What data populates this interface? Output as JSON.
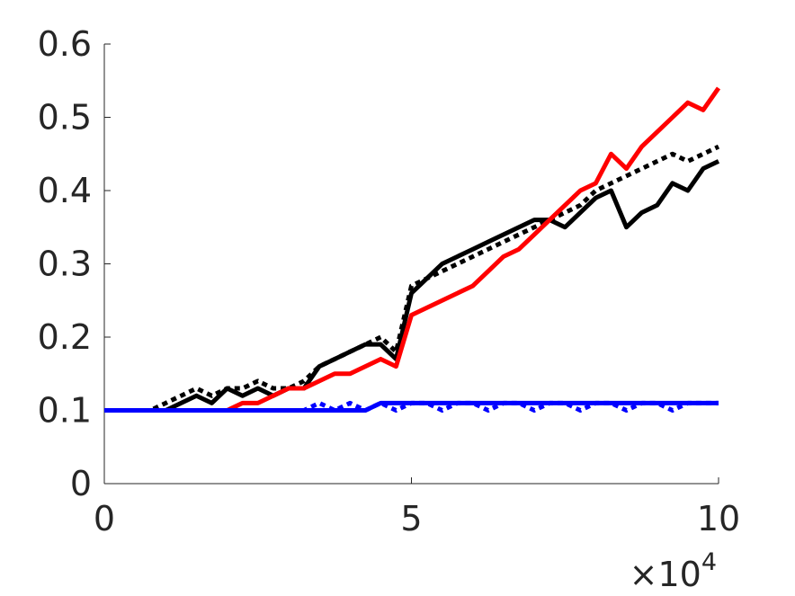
{
  "chart_data": {
    "type": "line",
    "x": [
      0,
      0.25,
      0.5,
      0.75,
      1,
      1.25,
      1.5,
      1.75,
      2,
      2.25,
      2.5,
      2.75,
      3,
      3.25,
      3.5,
      3.75,
      4,
      4.25,
      4.5,
      4.75,
      5,
      5.25,
      5.5,
      5.75,
      6,
      6.25,
      6.5,
      6.75,
      7,
      7.25,
      7.5,
      7.75,
      8,
      8.25,
      8.5,
      8.75,
      9,
      9.25,
      9.5,
      9.75,
      10
    ],
    "series": [
      {
        "color": "#000000",
        "dash": "dotted",
        "values": [
          0.1,
          0.1,
          0.1,
          0.1,
          0.11,
          0.12,
          0.13,
          0.12,
          0.13,
          0.13,
          0.14,
          0.13,
          0.13,
          0.14,
          0.16,
          0.17,
          0.18,
          0.19,
          0.2,
          0.18,
          0.27,
          0.28,
          0.29,
          0.3,
          0.31,
          0.32,
          0.33,
          0.34,
          0.35,
          0.36,
          0.37,
          0.38,
          0.4,
          0.41,
          0.42,
          0.43,
          0.44,
          0.45,
          0.44,
          0.45,
          0.46
        ]
      },
      {
        "color": "#000000",
        "dash": "solid",
        "values": [
          0.1,
          0.1,
          0.1,
          0.1,
          0.1,
          0.11,
          0.12,
          0.11,
          0.13,
          0.12,
          0.13,
          0.12,
          0.13,
          0.13,
          0.16,
          0.17,
          0.18,
          0.19,
          0.19,
          0.17,
          0.26,
          0.28,
          0.3,
          0.31,
          0.32,
          0.33,
          0.34,
          0.35,
          0.36,
          0.36,
          0.35,
          0.37,
          0.39,
          0.4,
          0.35,
          0.37,
          0.38,
          0.41,
          0.4,
          0.43,
          0.44
        ]
      },
      {
        "color": "#ff0000",
        "dash": "solid",
        "values": [
          0.1,
          0.1,
          0.1,
          0.1,
          0.1,
          0.1,
          0.1,
          0.1,
          0.1,
          0.11,
          0.11,
          0.12,
          0.13,
          0.13,
          0.14,
          0.15,
          0.15,
          0.16,
          0.17,
          0.16,
          0.23,
          0.24,
          0.25,
          0.26,
          0.27,
          0.29,
          0.31,
          0.32,
          0.34,
          0.36,
          0.38,
          0.4,
          0.41,
          0.45,
          0.43,
          0.46,
          0.48,
          0.5,
          0.52,
          0.51,
          0.54
        ]
      },
      {
        "color": "#0000ff",
        "dash": "dotted",
        "values": [
          0.1,
          0.1,
          0.1,
          0.1,
          0.1,
          0.1,
          0.1,
          0.1,
          0.1,
          0.1,
          0.1,
          0.1,
          0.1,
          0.1,
          0.11,
          0.1,
          0.11,
          0.1,
          0.11,
          0.1,
          0.11,
          0.11,
          0.1,
          0.11,
          0.11,
          0.1,
          0.11,
          0.11,
          0.1,
          0.11,
          0.11,
          0.1,
          0.11,
          0.11,
          0.1,
          0.11,
          0.11,
          0.1,
          0.11,
          0.11,
          0.11
        ]
      },
      {
        "color": "#0000ff",
        "dash": "solid",
        "values": [
          0.1,
          0.1,
          0.1,
          0.1,
          0.1,
          0.1,
          0.1,
          0.1,
          0.1,
          0.1,
          0.1,
          0.1,
          0.1,
          0.1,
          0.1,
          0.1,
          0.1,
          0.1,
          0.11,
          0.11,
          0.11,
          0.11,
          0.11,
          0.11,
          0.11,
          0.11,
          0.11,
          0.11,
          0.11,
          0.11,
          0.11,
          0.11,
          0.11,
          0.11,
          0.11,
          0.11,
          0.11,
          0.11,
          0.11,
          0.11,
          0.11
        ]
      }
    ],
    "xlim": [
      0,
      10
    ],
    "xticks": [
      0,
      5,
      10
    ],
    "ylim": [
      0,
      0.6
    ],
    "yticks": [
      0,
      0.1,
      0.2,
      0.3,
      0.4,
      0.5,
      0.6
    ],
    "x_multiplier": {
      "base": "×10",
      "exponent": "4"
    }
  }
}
